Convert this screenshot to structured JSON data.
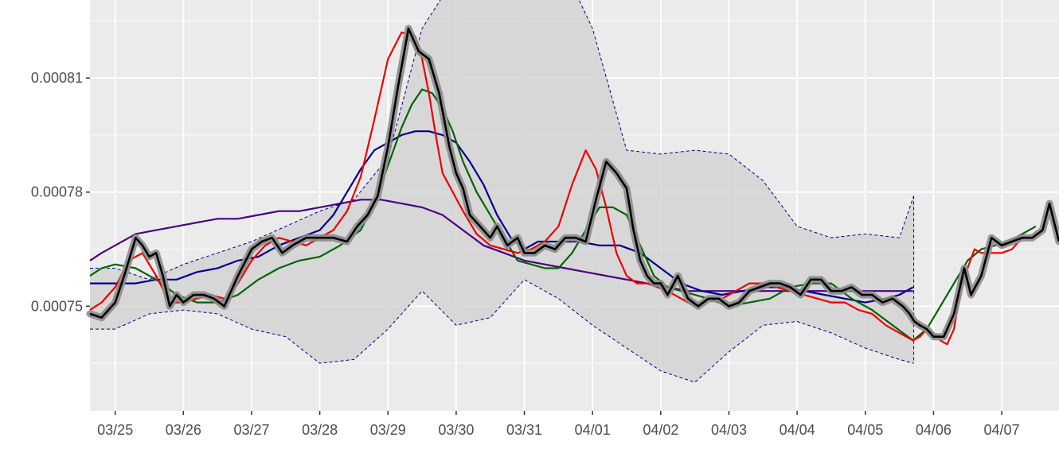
{
  "chart_data": {
    "type": "line",
    "title": "",
    "xlabel": "",
    "ylabel": "",
    "x_tick_labels": [
      "03/25",
      "03/26",
      "03/27",
      "03/28",
      "03/29",
      "03/30",
      "03/31",
      "04/01",
      "04/02",
      "04/03",
      "04/04",
      "04/05",
      "04/06",
      "04/07"
    ],
    "y_ticks": [
      0.00075,
      0.00078,
      0.00081
    ],
    "y_tick_labels": [
      "0.00075",
      "0.00078",
      "0.00081"
    ],
    "xlim": [
      -0.37,
      13.84
    ],
    "ylim": [
      0.0007225,
      0.0008305
    ],
    "grid": true,
    "background": "#ebebeb",
    "band": {
      "name": "",
      "fill": "#d3d3d3",
      "border_color": "#00008b",
      "x": [
        -0.37,
        0.0,
        0.5,
        1.0,
        1.5,
        2.0,
        2.5,
        3.0,
        3.5,
        4.0,
        4.5,
        5.0,
        5.5,
        6.0,
        6.5,
        7.0,
        7.5,
        8.0,
        8.5,
        9.0,
        9.5,
        10.0,
        10.5,
        11.0,
        11.5,
        11.71
      ],
      "upper": [
        0.00076,
        0.00076,
        0.000757,
        0.000761,
        0.000764,
        0.000767,
        0.000771,
        0.000775,
        0.000778,
        0.000789,
        0.000823,
        0.000837,
        0.000837,
        0.000836,
        0.000842,
        0.000823,
        0.000791,
        0.00079,
        0.000791,
        0.00079,
        0.000783,
        0.000771,
        0.000768,
        0.000769,
        0.000768,
        0.000779
      ],
      "lower": [
        0.000744,
        0.000744,
        0.000748,
        0.000749,
        0.000748,
        0.000744,
        0.000742,
        0.000735,
        0.000736,
        0.000744,
        0.000754,
        0.000745,
        0.000747,
        0.000757,
        0.000752,
        0.000745,
        0.000739,
        0.000733,
        0.00073,
        0.000738,
        0.000745,
        0.000746,
        0.000743,
        0.000739,
        0.000736,
        0.000735
      ]
    },
    "series": [
      {
        "name": "",
        "color": "#000000",
        "has_ribbon": true,
        "ribbon_color": "#8c8c8c",
        "x": [
          -0.37,
          -0.2,
          0.0,
          0.15,
          0.3,
          0.4,
          0.5,
          0.6,
          0.7,
          0.8,
          0.9,
          1.0,
          1.15,
          1.3,
          1.45,
          1.6,
          1.8,
          2.0,
          2.15,
          2.3,
          2.45,
          2.6,
          2.8,
          3.0,
          3.2,
          3.4,
          3.55,
          3.7,
          3.85,
          4.0,
          4.15,
          4.3,
          4.45,
          4.6,
          4.75,
          4.9,
          5.0,
          5.1,
          5.2,
          5.35,
          5.5,
          5.6,
          5.75,
          5.9,
          6.0,
          6.15,
          6.3,
          6.45,
          6.6,
          6.75,
          6.9,
          7.05,
          7.2,
          7.35,
          7.5,
          7.6,
          7.7,
          7.8,
          7.9,
          8.0,
          8.1,
          8.25,
          8.4,
          8.55,
          8.7,
          8.85,
          9.0,
          9.15,
          9.3,
          9.45,
          9.6,
          9.75,
          9.9,
          10.05,
          10.2,
          10.35,
          10.5,
          10.65,
          10.8,
          10.95,
          11.1,
          11.25,
          11.4,
          11.55,
          11.65,
          11.72,
          11.8,
          11.9,
          12.0,
          12.15,
          12.3,
          12.45,
          12.55,
          12.7,
          12.85,
          13.0,
          13.15,
          13.3,
          13.45,
          13.6,
          13.7,
          13.84
        ],
        "y": [
          0.000748,
          0.000747,
          0.000751,
          0.000759,
          0.000768,
          0.000766,
          0.000763,
          0.000764,
          0.000758,
          0.00075,
          0.000753,
          0.000751,
          0.000753,
          0.000753,
          0.000752,
          0.00075,
          0.000758,
          0.000765,
          0.000767,
          0.000768,
          0.000764,
          0.000766,
          0.000768,
          0.000768,
          0.000768,
          0.000767,
          0.000771,
          0.000774,
          0.000779,
          0.000792,
          0.000808,
          0.000823,
          0.000817,
          0.000815,
          0.000806,
          0.000792,
          0.000785,
          0.000781,
          0.000774,
          0.000771,
          0.000768,
          0.000771,
          0.000766,
          0.000768,
          0.000764,
          0.000764,
          0.000766,
          0.000765,
          0.000768,
          0.000768,
          0.000767,
          0.000778,
          0.000788,
          0.000785,
          0.000781,
          0.00077,
          0.000762,
          0.000758,
          0.000756,
          0.000756,
          0.000753,
          0.000758,
          0.000752,
          0.00075,
          0.000752,
          0.000752,
          0.00075,
          0.000751,
          0.000754,
          0.000755,
          0.000756,
          0.000756,
          0.000755,
          0.000753,
          0.000757,
          0.000757,
          0.000754,
          0.000754,
          0.000755,
          0.000753,
          0.000753,
          0.000751,
          0.000752,
          0.00075,
          0.000748,
          0.000746,
          0.000745,
          0.000744,
          0.000742,
          0.000742,
          0.000748,
          0.00076,
          0.000753,
          0.000758,
          0.000768,
          0.000766,
          0.000767,
          0.000768,
          0.000768,
          0.00077,
          0.000777,
          0.000767
        ]
      },
      {
        "name": "",
        "color": "#ee0000",
        "x": [
          -0.37,
          -0.2,
          0.0,
          0.2,
          0.4,
          0.6,
          0.8,
          1.0,
          1.2,
          1.4,
          1.6,
          1.8,
          2.0,
          2.2,
          2.4,
          2.6,
          2.8,
          3.0,
          3.2,
          3.4,
          3.6,
          3.8,
          4.0,
          4.2,
          4.4,
          4.5,
          4.6,
          4.7,
          4.8,
          4.95,
          5.1,
          5.3,
          5.5,
          5.7,
          5.9,
          6.1,
          6.3,
          6.5,
          6.7,
          6.9,
          7.05,
          7.2,
          7.35,
          7.5,
          7.65,
          7.8,
          7.95,
          8.1,
          8.3,
          8.5,
          8.7,
          8.9,
          9.1,
          9.3,
          9.5,
          9.7,
          9.9,
          10.1,
          10.3,
          10.5,
          10.7,
          10.9,
          11.1,
          11.3,
          11.5,
          11.7,
          11.8,
          11.9,
          12.0,
          12.1,
          12.2,
          12.3,
          12.4,
          12.5,
          12.6,
          12.7,
          12.85,
          13.0,
          13.15,
          13.3
        ],
        "y": [
          0.000749,
          0.000751,
          0.000755,
          0.000762,
          0.000764,
          0.000758,
          0.000751,
          0.000751,
          0.000752,
          0.000753,
          0.000752,
          0.000756,
          0.000762,
          0.000766,
          0.000768,
          0.000767,
          0.000766,
          0.000768,
          0.00077,
          0.000775,
          0.000784,
          0.000799,
          0.000815,
          0.000822,
          0.000821,
          0.000815,
          0.000806,
          0.000795,
          0.000785,
          0.00078,
          0.000775,
          0.000769,
          0.000766,
          0.000765,
          0.000764,
          0.000765,
          0.000767,
          0.000771,
          0.000782,
          0.000791,
          0.000786,
          0.000776,
          0.000764,
          0.000758,
          0.000756,
          0.000756,
          0.000755,
          0.000754,
          0.000752,
          0.00075,
          0.000752,
          0.000752,
          0.000754,
          0.000756,
          0.000756,
          0.000755,
          0.000754,
          0.000753,
          0.000752,
          0.000751,
          0.000751,
          0.000749,
          0.000748,
          0.000745,
          0.000743,
          0.000741,
          0.000742,
          0.000744,
          0.000743,
          0.000741,
          0.00074,
          0.000744,
          0.000755,
          0.00076,
          0.000765,
          0.000764,
          0.000764,
          0.000764,
          0.000765,
          0.000768
        ]
      },
      {
        "name": "",
        "color": "#006400",
        "x": [
          -0.37,
          -0.2,
          0.0,
          0.3,
          0.6,
          0.9,
          1.2,
          1.5,
          1.8,
          2.1,
          2.4,
          2.7,
          3.0,
          3.3,
          3.6,
          3.8,
          4.0,
          4.2,
          4.35,
          4.5,
          4.65,
          4.8,
          4.95,
          5.1,
          5.3,
          5.5,
          5.7,
          5.9,
          6.1,
          6.3,
          6.5,
          6.7,
          6.9,
          7.1,
          7.3,
          7.5,
          7.7,
          7.9,
          8.1,
          8.3,
          8.5,
          8.7,
          9.0,
          9.3,
          9.6,
          9.9,
          10.2,
          10.5,
          10.8,
          11.1,
          11.4,
          11.7,
          11.9,
          12.1,
          12.3,
          12.5,
          12.7,
          12.9,
          13.1,
          13.3,
          13.5
        ],
        "y": [
          0.000758,
          0.00076,
          0.000761,
          0.00076,
          0.000757,
          0.000753,
          0.000751,
          0.000751,
          0.000753,
          0.000757,
          0.00076,
          0.000762,
          0.000763,
          0.000766,
          0.00077,
          0.000777,
          0.000787,
          0.000797,
          0.000803,
          0.000807,
          0.000806,
          0.000802,
          0.000796,
          0.000788,
          0.00078,
          0.000774,
          0.000768,
          0.000762,
          0.000761,
          0.00076,
          0.00076,
          0.000764,
          0.00077,
          0.000776,
          0.000776,
          0.000774,
          0.000766,
          0.000758,
          0.000755,
          0.000754,
          0.000753,
          0.000752,
          0.00075,
          0.000751,
          0.000752,
          0.000755,
          0.000756,
          0.000756,
          0.000752,
          0.000749,
          0.000745,
          0.000741,
          0.000744,
          0.00075,
          0.000756,
          0.000762,
          0.000765,
          0.000766,
          0.000767,
          0.000769,
          0.000771
        ]
      },
      {
        "name": "",
        "color": "#00008b",
        "x": [
          -0.37,
          -0.2,
          0.0,
          0.3,
          0.6,
          0.9,
          1.2,
          1.5,
          1.8,
          2.1,
          2.4,
          2.7,
          3.0,
          3.2,
          3.4,
          3.6,
          3.8,
          4.0,
          4.2,
          4.4,
          4.6,
          4.8,
          5.0,
          5.2,
          5.4,
          5.6,
          5.8,
          6.0,
          6.2,
          6.5,
          6.8,
          7.1,
          7.4,
          7.7,
          8.0,
          8.3,
          8.6,
          8.9,
          9.2,
          9.5,
          9.8,
          10.1,
          10.4,
          10.7,
          11.0,
          11.3,
          11.5,
          11.7
        ],
        "y": [
          0.000756,
          0.000756,
          0.000756,
          0.000756,
          0.000757,
          0.000757,
          0.000759,
          0.00076,
          0.000762,
          0.000763,
          0.000766,
          0.000768,
          0.00077,
          0.000774,
          0.00078,
          0.000786,
          0.000791,
          0.000793,
          0.000795,
          0.000796,
          0.000796,
          0.000795,
          0.000793,
          0.000788,
          0.000782,
          0.000774,
          0.000768,
          0.000765,
          0.000767,
          0.000767,
          0.000767,
          0.000766,
          0.000766,
          0.000764,
          0.00076,
          0.000756,
          0.000754,
          0.000753,
          0.000754,
          0.000755,
          0.000755,
          0.000754,
          0.000753,
          0.000752,
          0.000751,
          0.000752,
          0.000753,
          0.000755
        ]
      },
      {
        "name": "",
        "color": "#4b0082",
        "x": [
          -0.37,
          -0.2,
          0.0,
          0.3,
          0.6,
          0.9,
          1.2,
          1.5,
          1.8,
          2.1,
          2.4,
          2.7,
          3.0,
          3.3,
          3.6,
          3.9,
          4.2,
          4.5,
          4.8,
          5.1,
          5.4,
          5.7,
          6.0,
          6.3,
          6.6,
          6.9,
          7.2,
          7.5,
          7.8,
          8.1,
          8.4,
          8.7,
          9.0,
          9.3,
          9.6,
          9.9,
          10.2,
          10.5,
          10.8,
          11.1,
          11.4,
          11.7
        ],
        "y": [
          0.000762,
          0.000764,
          0.000766,
          0.000769,
          0.00077,
          0.000771,
          0.000772,
          0.000773,
          0.000773,
          0.000774,
          0.000775,
          0.000775,
          0.000776,
          0.000777,
          0.000778,
          0.000778,
          0.000777,
          0.000776,
          0.000774,
          0.00077,
          0.000766,
          0.000764,
          0.000762,
          0.000761,
          0.00076,
          0.000759,
          0.000758,
          0.000757,
          0.000756,
          0.000755,
          0.000754,
          0.000754,
          0.000754,
          0.000754,
          0.000754,
          0.000754,
          0.000754,
          0.000754,
          0.000754,
          0.000754,
          0.000754,
          0.000754
        ]
      }
    ]
  }
}
